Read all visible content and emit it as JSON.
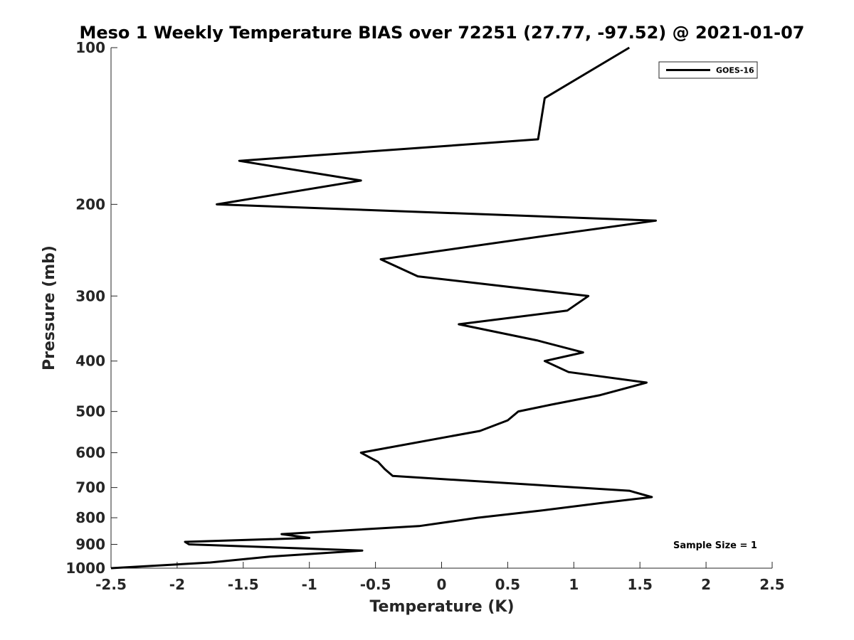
{
  "chart_data": {
    "type": "line",
    "title": "Meso 1 Weekly Temperature BIAS over 72251 (27.77, -97.52) @ 2021-01-07",
    "xlabel": "Temperature (K)",
    "ylabel": "Pressure (mb)",
    "xlim": [
      -2.5,
      2.5
    ],
    "ylim": [
      1000,
      100
    ],
    "y_scale": "log",
    "x_ticks": [
      "-2.5",
      "-2",
      "-1.5",
      "-1",
      "-0.5",
      "0",
      "0.5",
      "1",
      "1.5",
      "2",
      "2.5"
    ],
    "y_ticks": [
      "100",
      "200",
      "300",
      "400",
      "500",
      "600",
      "700",
      "800",
      "900",
      "1000"
    ],
    "legend_position": "top-right",
    "annotation": "Sample Size = 1",
    "series": [
      {
        "name": "GOES-16",
        "color": "#000000",
        "temperature": [
          1.42,
          0.78,
          0.73,
          -1.53,
          -0.61,
          -1.7,
          1.62,
          0.78,
          -0.46,
          -0.18,
          1.11,
          0.95,
          0.13,
          0.72,
          1.07,
          0.78,
          0.96,
          1.55,
          1.2,
          0.83,
          0.58,
          0.5,
          0.29,
          -0.61,
          -0.48,
          -0.43,
          -0.37,
          1.42,
          1.59,
          1.2,
          0.75,
          0.27,
          -0.17,
          -1.21,
          -1.0,
          -1.94,
          -1.91,
          -0.6,
          -1.3,
          -1.75,
          -2.5
        ],
        "pressure": [
          100,
          125,
          150,
          165,
          180,
          200,
          215,
          230,
          255,
          275,
          300,
          320,
          340,
          365,
          385,
          400,
          420,
          440,
          465,
          485,
          500,
          520,
          545,
          600,
          625,
          645,
          665,
          710,
          730,
          750,
          775,
          800,
          830,
          860,
          875,
          890,
          900,
          925,
          950,
          975,
          1000
        ]
      }
    ]
  }
}
